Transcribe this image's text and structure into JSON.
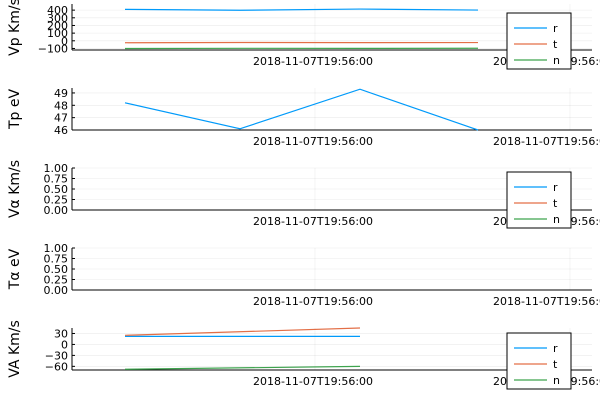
{
  "x_tick_label": "2018-11-07T19:56:00",
  "chart_data": [
    {
      "type": "line",
      "ylabel": "Vp Km/s",
      "ylim": [
        -120,
        480
      ],
      "yticks": [
        -100,
        0,
        100,
        200,
        300,
        400
      ],
      "ytick_labels": [
        "−100",
        "0",
        "100",
        "200",
        "300",
        "400"
      ],
      "x": [
        0,
        1,
        2,
        3
      ],
      "series": [
        {
          "name": "r",
          "color": "#009AFA",
          "values": [
            410,
            398,
            414,
            401
          ]
        },
        {
          "name": "t",
          "color": "#E36F47",
          "values": [
            -25,
            -22,
            -24,
            -23
          ]
        },
        {
          "name": "n",
          "color": "#3EA44E",
          "values": [
            -100,
            -98,
            -99,
            -97
          ]
        }
      ],
      "legend": "bottom-right",
      "grid": true
    },
    {
      "type": "line",
      "ylabel": "Tp eV",
      "ylim": [
        46,
        49.4
      ],
      "yticks": [
        46,
        47,
        48,
        49
      ],
      "ytick_labels": [
        "46",
        "47",
        "48",
        "49"
      ],
      "x": [
        0,
        1,
        2,
        3
      ],
      "series": [
        {
          "name": "",
          "color": "#009AFA",
          "values": [
            48.2,
            46.1,
            49.3,
            46.0
          ]
        }
      ],
      "legend": "none",
      "grid": true
    },
    {
      "type": "line",
      "ylabel": "Vα Km/s",
      "ylim": [
        0,
        1
      ],
      "yticks": [
        0,
        0.25,
        0.5,
        0.75,
        1
      ],
      "ytick_labels": [
        "0.00",
        "0.25",
        "0.50",
        "0.75",
        "1.00"
      ],
      "x": [],
      "series": [
        {
          "name": "r",
          "color": "#009AFA",
          "values": []
        },
        {
          "name": "t",
          "color": "#E36F47",
          "values": []
        },
        {
          "name": "n",
          "color": "#3EA44E",
          "values": []
        }
      ],
      "legend": "bottom-right",
      "grid": true
    },
    {
      "type": "line",
      "ylabel": "Tα eV",
      "ylim": [
        0,
        1
      ],
      "yticks": [
        0,
        0.25,
        0.5,
        0.75,
        1
      ],
      "ytick_labels": [
        "0.00",
        "0.25",
        "0.50",
        "0.75",
        "1.00"
      ],
      "x": [],
      "series": [],
      "legend": "none",
      "grid": true
    },
    {
      "type": "line",
      "ylabel": "VA Km/s",
      "ylim": [
        -70,
        45
      ],
      "yticks": [
        -60,
        -30,
        0,
        30
      ],
      "ytick_labels": [
        "−60",
        "−30",
        "0",
        "30"
      ],
      "x": [
        0,
        2
      ],
      "series": [
        {
          "name": "r",
          "color": "#009AFA",
          "values": [
            22,
            22
          ]
        },
        {
          "name": "t",
          "color": "#E36F47",
          "values": [
            25,
            45
          ]
        },
        {
          "name": "n",
          "color": "#3EA44E",
          "values": [
            -68,
            -60
          ]
        }
      ],
      "legend": "bottom-right",
      "grid": true
    }
  ]
}
